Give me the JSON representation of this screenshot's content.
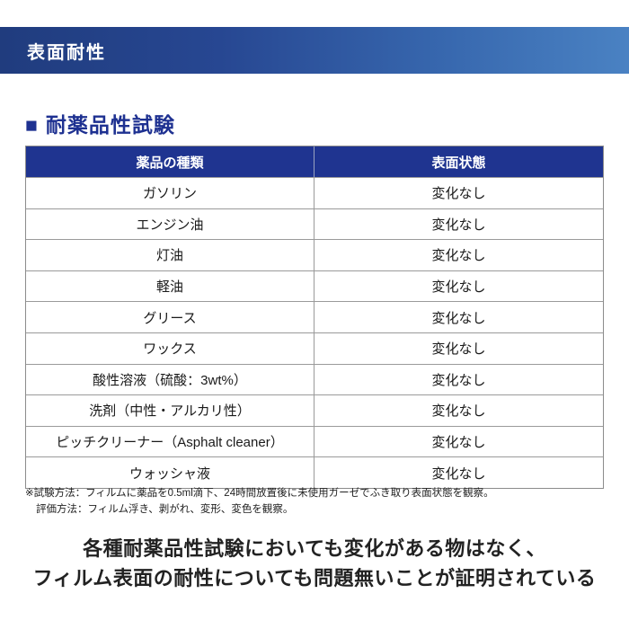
{
  "banner": {
    "title": "表面耐性"
  },
  "section": {
    "marker": "■",
    "title": "耐薬品性試験"
  },
  "table": {
    "headers": [
      "薬品の種類",
      "表面状態"
    ],
    "rows": [
      [
        "ガソリン",
        "変化なし"
      ],
      [
        "エンジン油",
        "変化なし"
      ],
      [
        "灯油",
        "変化なし"
      ],
      [
        "軽油",
        "変化なし"
      ],
      [
        "グリース",
        "変化なし"
      ],
      [
        "ワックス",
        "変化なし"
      ],
      [
        "酸性溶液（硫酸：3wt%）",
        "変化なし"
      ],
      [
        "洗剤（中性・アルカリ性）",
        "変化なし"
      ],
      [
        "ピッチクリーナー（Asphalt cleaner）",
        "変化なし"
      ],
      [
        "ウォッシャ液",
        "変化なし"
      ]
    ]
  },
  "notes": {
    "line1": "※試験方法：フィルムに薬品を0.5ml滴下、24時間放置後に未使用ガーゼでふき取り表面状態を観察。",
    "line2": "評価方法：フィルム浮き、剥がれ、変形、変色を観察。"
  },
  "conclusion": {
    "line1": "各種耐薬品性試験においても変化がある物はなく、",
    "line2": "フィルム表面の耐性についても問題無いことが証明されている"
  },
  "colors": {
    "banner_gradient_start": "#203c7e",
    "banner_gradient_end": "#4a82c3",
    "table_header_bg": "#1f3490",
    "heading_text": "#1e3191",
    "body_text": "#1a1a1a",
    "border": "#8c8c8c"
  }
}
